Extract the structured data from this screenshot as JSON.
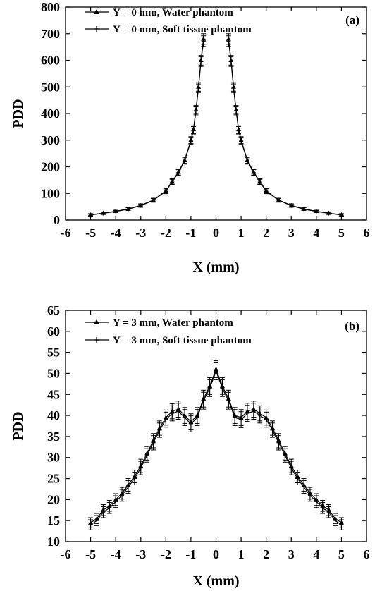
{
  "chart_data": [
    {
      "type": "line",
      "panel_label": "(a)",
      "xlabel": "X (mm)",
      "ylabel": "PDD",
      "xlim": [
        -6,
        6
      ],
      "ylim": [
        0,
        800
      ],
      "xticks": [
        -6,
        -5,
        -4,
        -3,
        -2,
        -1,
        0,
        1,
        2,
        3,
        4,
        5,
        6
      ],
      "yticks": [
        0,
        100,
        200,
        300,
        400,
        500,
        600,
        700,
        800
      ],
      "grid": false,
      "legend_position": "top-left",
      "series": [
        {
          "name": "Y = 0 mm, Water phantom",
          "marker": "triangle",
          "x": [
            -5.0,
            -4.5,
            -4.0,
            -3.5,
            -3.0,
            -2.5,
            -2.0,
            -1.75,
            -1.5,
            -1.25,
            -1.0,
            -0.9,
            -0.8,
            -0.7,
            -0.6,
            -0.5,
            0.5,
            0.6,
            0.7,
            0.8,
            0.9,
            1.0,
            1.25,
            1.5,
            1.75,
            2.0,
            2.5,
            3.0,
            3.5,
            4.0,
            4.5,
            5.0
          ],
          "y": [
            20,
            26,
            33,
            42,
            55,
            75,
            110,
            145,
            180,
            225,
            300,
            340,
            415,
            500,
            600,
            680,
            680,
            600,
            500,
            415,
            340,
            300,
            225,
            180,
            145,
            110,
            75,
            55,
            42,
            33,
            26,
            20
          ],
          "yerr": [
            4,
            4,
            4,
            5,
            6,
            7,
            9,
            10,
            11,
            12,
            13,
            14,
            15,
            16,
            18,
            20,
            20,
            18,
            16,
            15,
            14,
            13,
            12,
            11,
            10,
            9,
            7,
            6,
            5,
            4,
            4,
            4
          ]
        },
        {
          "name": "Y = 0 mm, Soft tissue phantom",
          "marker": "plus",
          "x": [
            -5.0,
            -4.5,
            -4.0,
            -3.5,
            -3.0,
            -2.5,
            -2.0,
            -1.75,
            -1.5,
            -1.25,
            -1.0,
            -0.9,
            -0.8,
            -0.7,
            -0.6,
            -0.5,
            0.5,
            0.6,
            0.7,
            0.8,
            0.9,
            1.0,
            1.25,
            1.5,
            1.75,
            2.0,
            2.5,
            3.0,
            3.5,
            4.0,
            4.5,
            5.0
          ],
          "y": [
            19,
            25,
            32,
            41,
            54,
            74,
            108,
            143,
            178,
            222,
            297,
            337,
            410,
            495,
            595,
            672,
            672,
            595,
            495,
            410,
            337,
            297,
            222,
            178,
            143,
            108,
            74,
            54,
            41,
            32,
            25,
            19
          ],
          "yerr": [
            4,
            4,
            4,
            5,
            6,
            7,
            9,
            10,
            11,
            12,
            13,
            14,
            15,
            16,
            18,
            20,
            20,
            18,
            16,
            15,
            14,
            13,
            12,
            11,
            10,
            9,
            7,
            6,
            5,
            4,
            4,
            4
          ]
        }
      ]
    },
    {
      "type": "line",
      "panel_label": "(b)",
      "xlabel": "X (mm)",
      "ylabel": "PDD",
      "xlim": [
        -6,
        6
      ],
      "ylim": [
        10,
        65
      ],
      "xticks": [
        -6,
        -5,
        -4,
        -3,
        -2,
        -1,
        0,
        1,
        2,
        3,
        4,
        5,
        6
      ],
      "yticks": [
        10,
        15,
        20,
        25,
        30,
        35,
        40,
        45,
        50,
        55,
        60,
        65
      ],
      "grid": false,
      "legend_position": "top-left",
      "series": [
        {
          "name": "Y = 3 mm, Water phantom",
          "marker": "triangle",
          "x": [
            -5.0,
            -4.75,
            -4.5,
            -4.25,
            -4.0,
            -3.75,
            -3.5,
            -3.25,
            -3.0,
            -2.75,
            -2.5,
            -2.25,
            -2.0,
            -1.75,
            -1.5,
            -1.25,
            -1.0,
            -0.75,
            -0.5,
            -0.25,
            0.0,
            0.25,
            0.5,
            0.75,
            1.0,
            1.25,
            1.5,
            1.75,
            2.0,
            2.25,
            2.5,
            2.75,
            3.0,
            3.25,
            3.5,
            3.75,
            4.0,
            4.25,
            4.5,
            4.75,
            5.0
          ],
          "y": [
            14.5,
            15.5,
            17.5,
            18.5,
            20,
            21.5,
            23.5,
            25.5,
            28,
            31,
            34,
            37,
            39.5,
            41,
            41.5,
            40,
            38.5,
            40,
            44,
            47,
            51,
            47,
            44,
            40,
            39.5,
            41,
            41.5,
            40.5,
            39.5,
            37,
            34,
            31,
            28,
            25.5,
            23.5,
            21.5,
            20,
            18.5,
            17.5,
            15.5,
            14.5
          ],
          "yerr": [
            1.2,
            1.2,
            1.3,
            1.3,
            1.4,
            1.4,
            1.5,
            1.5,
            1.6,
            1.6,
            1.7,
            1.7,
            1.8,
            1.8,
            1.9,
            1.9,
            1.9,
            1.9,
            2.0,
            2.0,
            2.0,
            2.0,
            2.0,
            1.9,
            1.9,
            1.9,
            1.9,
            1.8,
            1.8,
            1.7,
            1.7,
            1.6,
            1.6,
            1.5,
            1.5,
            1.4,
            1.4,
            1.3,
            1.3,
            1.2,
            1.2
          ]
        },
        {
          "name": "Y = 3 mm, Soft tissue phantom",
          "marker": "plus",
          "x": [
            -5.0,
            -4.75,
            -4.5,
            -4.25,
            -4.0,
            -3.75,
            -3.5,
            -3.25,
            -3.0,
            -2.75,
            -2.5,
            -2.25,
            -2.0,
            -1.75,
            -1.5,
            -1.25,
            -1.0,
            -0.75,
            -0.5,
            -0.25,
            0.0,
            0.25,
            0.5,
            0.75,
            1.0,
            1.25,
            1.5,
            1.75,
            2.0,
            2.25,
            2.5,
            2.75,
            3.0,
            3.25,
            3.5,
            3.75,
            4.0,
            4.25,
            4.5,
            4.75,
            5.0
          ],
          "y": [
            14,
            15,
            17,
            18,
            19.5,
            21,
            23,
            25,
            27.5,
            30.5,
            33.5,
            36.5,
            39,
            40.5,
            41,
            39.5,
            38,
            39.5,
            43.5,
            46.5,
            50.5,
            46.5,
            43.5,
            39.5,
            39,
            40.5,
            41,
            40,
            39,
            36.5,
            33.5,
            30.5,
            27.5,
            25,
            23,
            21,
            19.5,
            18,
            17,
            15,
            14
          ],
          "yerr": [
            1.2,
            1.2,
            1.3,
            1.3,
            1.4,
            1.4,
            1.5,
            1.5,
            1.6,
            1.6,
            1.7,
            1.7,
            1.8,
            1.8,
            1.9,
            1.9,
            1.9,
            1.9,
            2.0,
            2.0,
            2.0,
            2.0,
            2.0,
            1.9,
            1.9,
            1.9,
            1.9,
            1.8,
            1.8,
            1.7,
            1.7,
            1.6,
            1.6,
            1.5,
            1.5,
            1.4,
            1.4,
            1.3,
            1.3,
            1.2,
            1.2
          ]
        }
      ]
    }
  ]
}
